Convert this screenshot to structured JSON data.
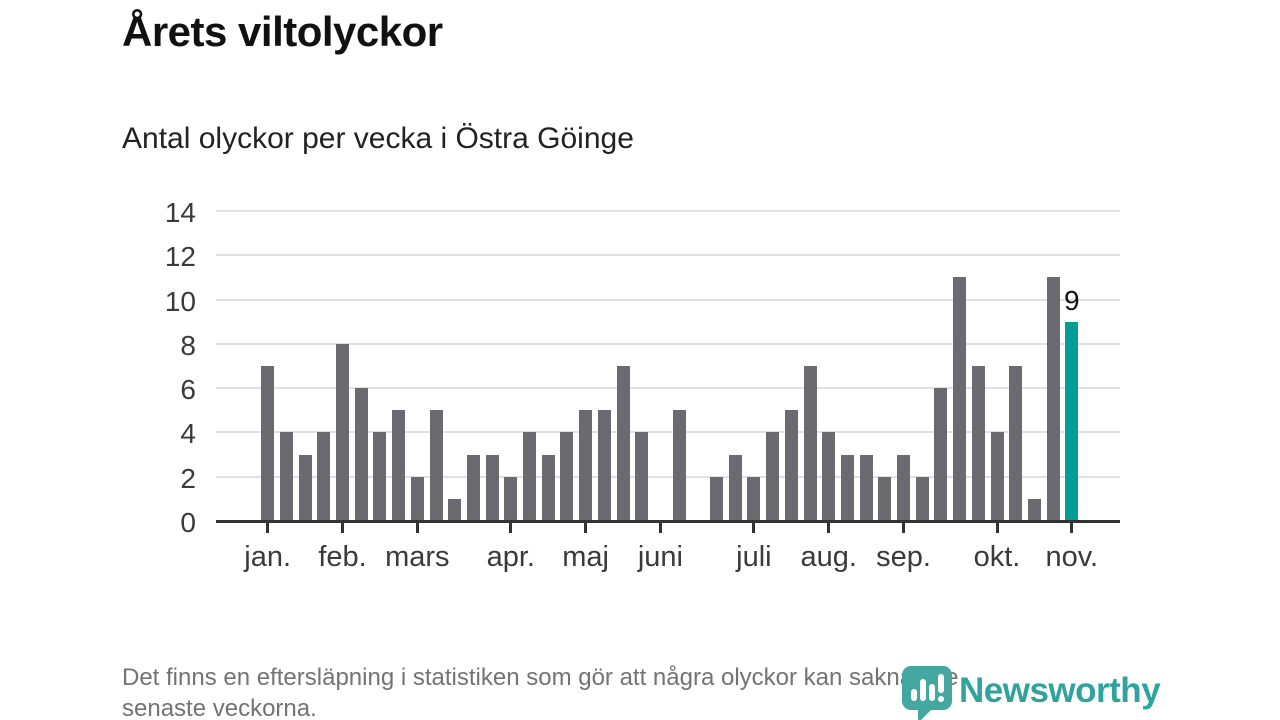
{
  "header": {
    "title": "Årets viltolyckor",
    "subtitle": "Antal olyckor per vecka i Östra Göinge"
  },
  "footer": {
    "line1": "Det finns en eftersläpning i statistiken som gör att några olyckor kan saknas de",
    "line2": "senaste veckorna."
  },
  "logo": {
    "text": "Newsworthy",
    "icon": "newsworthy-pin-barchart-icon"
  },
  "colors": {
    "bar_gray": "#6b6a71",
    "bar_highlight": "#009e96",
    "gridline": "#e1e1e1",
    "axis": "#333333",
    "logo_teal_icon": "#44a8a1",
    "logo_teal_text": "#2fa39d"
  },
  "chart_data": {
    "type": "bar",
    "title": "Årets viltolyckor",
    "subtitle": "Antal olyckor per vecka i Östra Göinge",
    "x_unit": "vecka (weekly bars, jan–nov)",
    "values": [
      7,
      4,
      3,
      4,
      8,
      6,
      4,
      5,
      2,
      5,
      1,
      3,
      3,
      2,
      4,
      3,
      4,
      5,
      5,
      7,
      4,
      0,
      5,
      0,
      2,
      3,
      2,
      4,
      5,
      7,
      4,
      3,
      3,
      2,
      3,
      2,
      6,
      11,
      7,
      4,
      7,
      1,
      11,
      9
    ],
    "highlight_index": 43,
    "highlight_value_label": "9",
    "y_ticks": [
      0,
      2,
      4,
      6,
      8,
      10,
      12,
      14
    ],
    "ylim": [
      0,
      14
    ],
    "grid": true,
    "legend": "none",
    "month_ticks": [
      {
        "index": 0,
        "label": "jan."
      },
      {
        "index": 4,
        "label": "feb."
      },
      {
        "index": 8,
        "label": "mars"
      },
      {
        "index": 13,
        "label": "apr."
      },
      {
        "index": 17,
        "label": "maj"
      },
      {
        "index": 21,
        "label": "juni"
      },
      {
        "index": 26,
        "label": "juli"
      },
      {
        "index": 30,
        "label": "aug."
      },
      {
        "index": 34,
        "label": "sep."
      },
      {
        "index": 39,
        "label": "okt."
      },
      {
        "index": 43,
        "label": "nov."
      }
    ]
  }
}
